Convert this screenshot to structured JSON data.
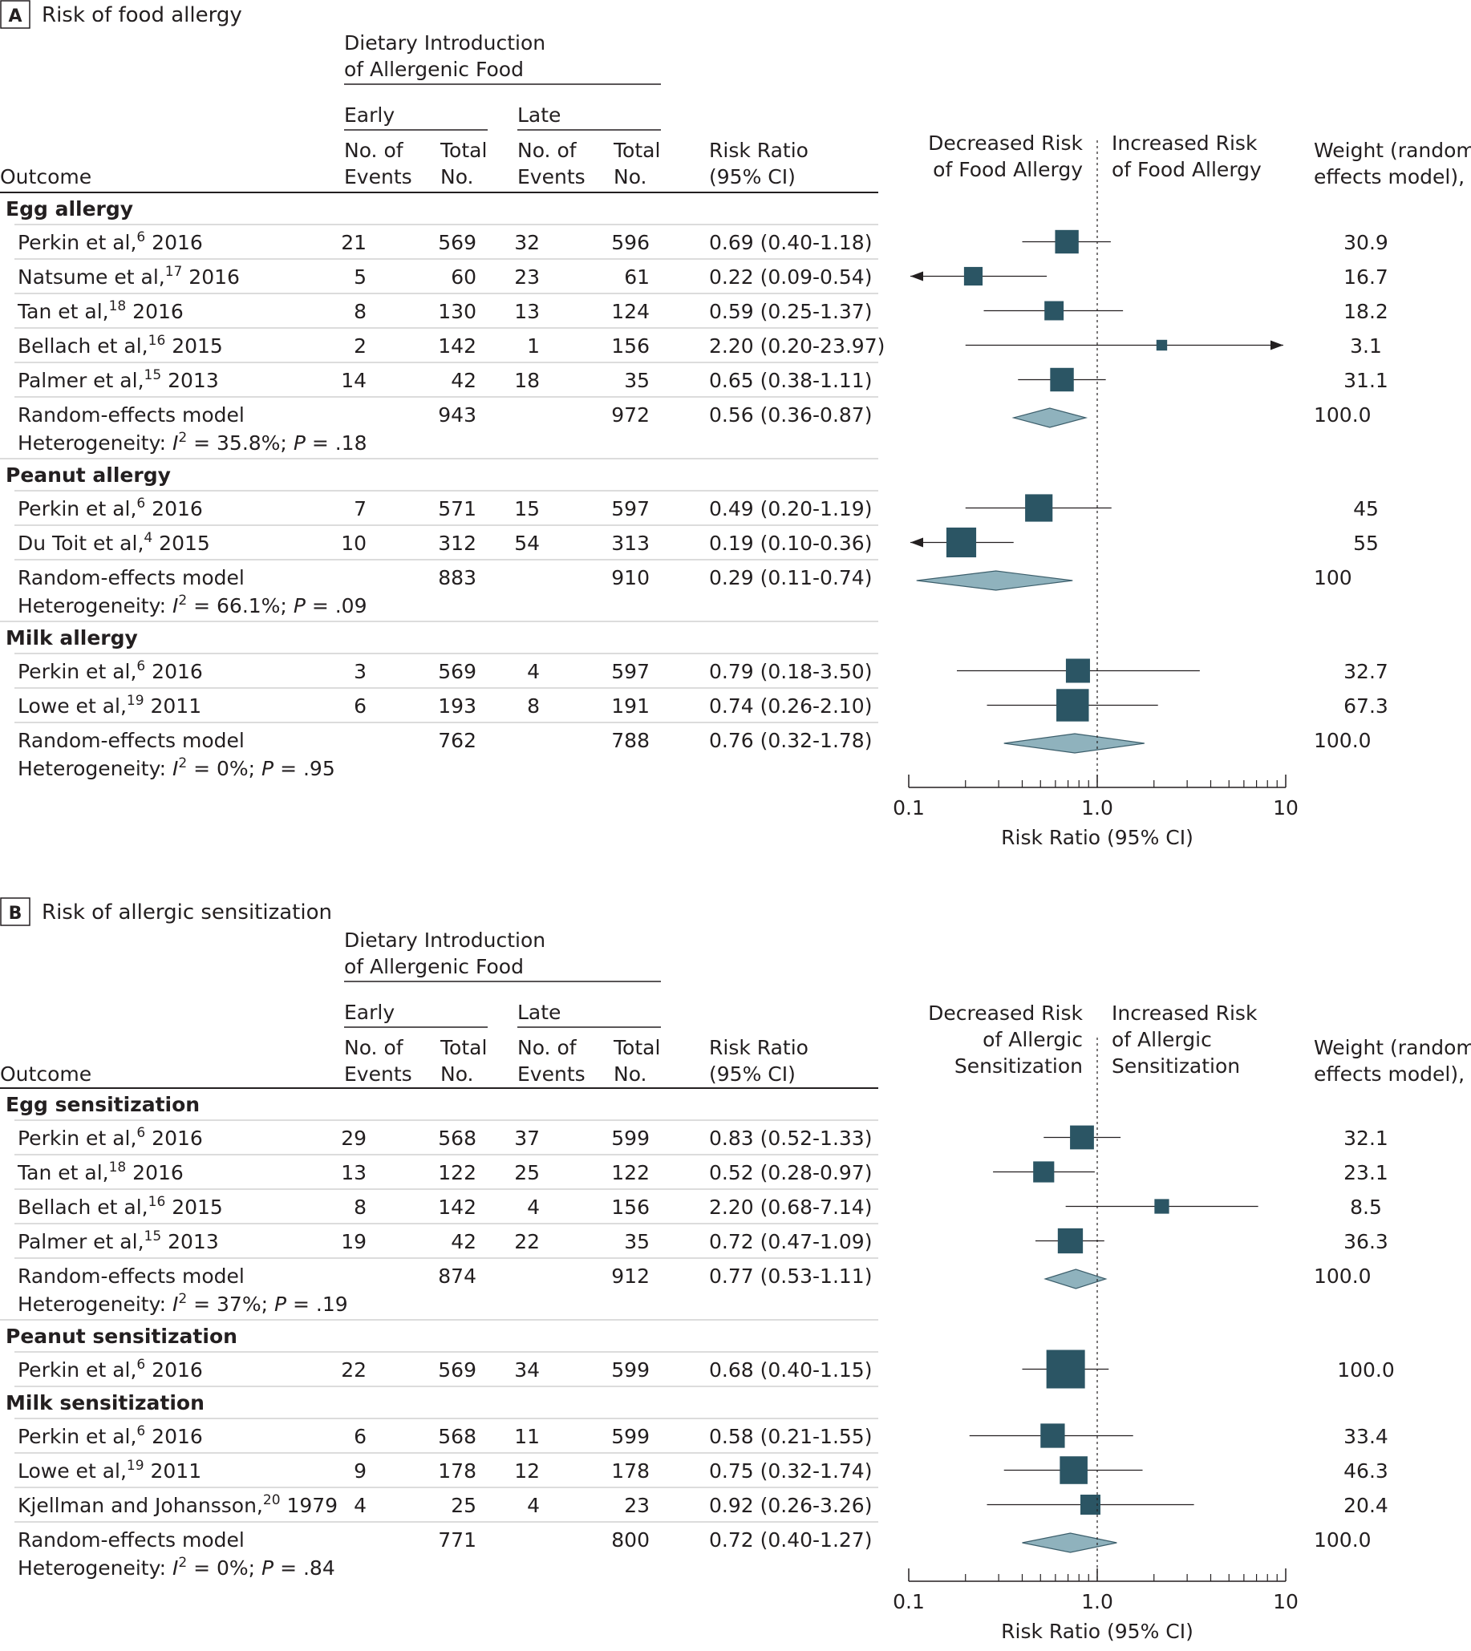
{
  "panels": [
    {
      "letter": "A",
      "title": "Risk of food allergy",
      "header": {
        "group_title": [
          "Dietary Introduction",
          "of Allergenic Food"
        ],
        "early": "Early",
        "late": "Late",
        "outcome": "Outcome",
        "events": [
          "No. of",
          "Events"
        ],
        "total": [
          "Total",
          "No."
        ],
        "rr": [
          "Risk Ratio",
          "(95% CI)"
        ],
        "left_label": [
          "Decreased Risk",
          "of Food Allergy"
        ],
        "right_label": [
          "Increased Risk",
          "of Food Allergy"
        ],
        "weight": [
          "Weight (random-",
          "effects model), %"
        ]
      },
      "groups": [
        {
          "name": "Egg allergy",
          "studies": [
            {
              "study": "Perkin et al,",
              "ref": "6",
              "year": "2016",
              "early_events": "21",
              "early_total": "569",
              "late_events": "32",
              "late_total": "596",
              "rr_text": "0.69 (0.40-1.18)",
              "weight": "30.9"
            },
            {
              "study": "Natsume et al,",
              "ref": "17",
              "year": "2016",
              "early_events": "5",
              "early_total": "60",
              "late_events": "23",
              "late_total": "61",
              "rr_text": "0.22 (0.09-0.54)",
              "weight": "16.7"
            },
            {
              "study": "Tan et al,",
              "ref": "18",
              "year": "2016",
              "early_events": "8",
              "early_total": "130",
              "late_events": "13",
              "late_total": "124",
              "rr_text": "0.59 (0.25-1.37)",
              "weight": "18.2"
            },
            {
              "study": "Bellach et al,",
              "ref": "16",
              "year": "2015",
              "early_events": "2",
              "early_total": "142",
              "late_events": "1",
              "late_total": "156",
              "rr_text": "2.20 (0.20-23.97)",
              "weight": "3.1"
            },
            {
              "study": "Palmer et al,",
              "ref": "15",
              "year": "2013",
              "early_events": "14",
              "early_total": "42",
              "late_events": "18",
              "late_total": "35",
              "rr_text": "0.65 (0.38-1.11)",
              "weight": "31.1"
            }
          ],
          "summary": {
            "label": "Random-effects model",
            "early_total": "943",
            "late_total": "972",
            "rr_text": "0.56 (0.36-0.87)",
            "weight": "100.0",
            "het_value": "35.8%",
            "p_value": ".18"
          }
        },
        {
          "name": "Peanut allergy",
          "studies": [
            {
              "study": "Perkin et al,",
              "ref": "6",
              "year": "2016",
              "early_events": "7",
              "early_total": "571",
              "late_events": "15",
              "late_total": "597",
              "rr_text": "0.49 (0.20-1.19)",
              "weight": "45"
            },
            {
              "study": "Du Toit et al,",
              "ref": "4",
              "year": "2015",
              "early_events": "10",
              "early_total": "312",
              "late_events": "54",
              "late_total": "313",
              "rr_text": "0.19 (0.10-0.36)",
              "weight": "55"
            }
          ],
          "summary": {
            "label": "Random-effects model",
            "early_total": "883",
            "late_total": "910",
            "rr_text": "0.29 (0.11-0.74)",
            "weight": "100",
            "het_value": "66.1%",
            "p_value": ".09"
          }
        },
        {
          "name": "Milk allergy",
          "studies": [
            {
              "study": "Perkin et al,",
              "ref": "6",
              "year": "2016",
              "early_events": "3",
              "early_total": "569",
              "late_events": "4",
              "late_total": "597",
              "rr_text": "0.79 (0.18-3.50)",
              "weight": "32.7"
            },
            {
              "study": "Lowe et al,",
              "ref": "19",
              "year": "2011",
              "early_events": "6",
              "early_total": "193",
              "late_events": "8",
              "late_total": "191",
              "rr_text": "0.74 (0.26-2.10)",
              "weight": "67.3"
            }
          ],
          "summary": {
            "label": "Random-effects model",
            "early_total": "762",
            "late_total": "788",
            "rr_text": "0.76 (0.32-1.78)",
            "weight": "100.0",
            "het_value": "0%",
            "p_value": ".95"
          }
        }
      ],
      "axis": {
        "ticks": [
          "0.1",
          "1.0",
          "10"
        ],
        "label": "Risk Ratio (95% CI)"
      }
    },
    {
      "letter": "B",
      "title": "Risk of allergic sensitization",
      "header": {
        "group_title": [
          "Dietary Introduction",
          "of Allergenic Food"
        ],
        "early": "Early",
        "late": "Late",
        "outcome": "Outcome",
        "events": [
          "No. of",
          "Events"
        ],
        "total": [
          "Total",
          "No."
        ],
        "rr": [
          "Risk Ratio",
          "(95% CI)"
        ],
        "left_label": [
          "Decreased Risk",
          "of Allergic",
          "Sensitization"
        ],
        "right_label": [
          "Increased Risk",
          "of Allergic",
          "Sensitization"
        ],
        "weight": [
          "Weight (random-",
          "effects model), %"
        ]
      },
      "groups": [
        {
          "name": "Egg sensitization",
          "studies": [
            {
              "study": "Perkin et al,",
              "ref": "6",
              "year": "2016",
              "early_events": "29",
              "early_total": "568",
              "late_events": "37",
              "late_total": "599",
              "rr_text": "0.83 (0.52-1.33)",
              "weight": "32.1"
            },
            {
              "study": "Tan et al,",
              "ref": "18",
              "year": "2016",
              "early_events": "13",
              "early_total": "122",
              "late_events": "25",
              "late_total": "122",
              "rr_text": "0.52 (0.28-0.97)",
              "weight": "23.1"
            },
            {
              "study": "Bellach et al,",
              "ref": "16",
              "year": "2015",
              "early_events": "8",
              "early_total": "142",
              "late_events": "4",
              "late_total": "156",
              "rr_text": "2.20 (0.68-7.14)",
              "weight": "8.5"
            },
            {
              "study": "Palmer et al,",
              "ref": "15",
              "year": "2013",
              "early_events": "19",
              "early_total": "42",
              "late_events": "22",
              "late_total": "35",
              "rr_text": "0.72 (0.47-1.09)",
              "weight": "36.3"
            }
          ],
          "summary": {
            "label": "Random-effects model",
            "early_total": "874",
            "late_total": "912",
            "rr_text": "0.77 (0.53-1.11)",
            "weight": "100.0",
            "het_value": "37%",
            "p_value": ".19"
          }
        },
        {
          "name": "Peanut sensitization",
          "studies": [
            {
              "study": "Perkin et al,",
              "ref": "6",
              "year": "2016",
              "early_events": "22",
              "early_total": "569",
              "late_events": "34",
              "late_total": "599",
              "rr_text": "0.68 (0.40-1.15)",
              "weight": "100.0"
            }
          ],
          "summary": null
        },
        {
          "name": "Milk sensitization",
          "studies": [
            {
              "study": "Perkin et al,",
              "ref": "6",
              "year": "2016",
              "early_events": "6",
              "early_total": "568",
              "late_events": "11",
              "late_total": "599",
              "rr_text": "0.58 (0.21-1.55)",
              "weight": "33.4"
            },
            {
              "study": "Lowe et al,",
              "ref": "19",
              "year": "2011",
              "early_events": "9",
              "early_total": "178",
              "late_events": "12",
              "late_total": "178",
              "rr_text": "0.75 (0.32-1.74)",
              "weight": "46.3"
            },
            {
              "study": "Kjellman and Johansson,",
              "ref": "20",
              "year": "1979",
              "early_events": "4",
              "early_total": "25",
              "late_events": "4",
              "late_total": "23",
              "rr_text": "0.92 (0.26-3.26)",
              "weight": "20.4"
            }
          ],
          "summary": {
            "label": "Random-effects model",
            "early_total": "771",
            "late_total": "800",
            "rr_text": "0.72 (0.40-1.27)",
            "weight": "100.0",
            "het_value": "0%",
            "p_value": ".84"
          }
        }
      ],
      "axis": {
        "ticks": [
          "0.1",
          "1.0",
          "10"
        ],
        "label": "Risk Ratio (95% CI)"
      }
    }
  ],
  "het_prefix": "Heterogeneity: ",
  "het_symbol": "I",
  "het_power": "2",
  "het_p_symbol": "P",
  "colors": {
    "square": "#2b5564",
    "diamond": "#8fb2bd",
    "diamond_stroke": "#3d5f6c",
    "ink": "#231f20"
  },
  "chart_data": [
    {
      "type": "forest",
      "title": "Risk of food allergy",
      "xlabel": "Risk Ratio (95% CI)",
      "x_scale": "log",
      "xlim": [
        0.1,
        10
      ],
      "reference_line": 1.0,
      "series": [
        {
          "name": "Egg allergy",
          "points": [
            {
              "label": "Perkin et al, 2016",
              "rr": 0.69,
              "lo": 0.4,
              "hi": 1.18,
              "weight": 30.9
            },
            {
              "label": "Natsume et al, 2016",
              "rr": 0.22,
              "lo": 0.09,
              "hi": 0.54,
              "weight": 16.7
            },
            {
              "label": "Tan et al, 2016",
              "rr": 0.59,
              "lo": 0.25,
              "hi": 1.37,
              "weight": 18.2
            },
            {
              "label": "Bellach et al, 2015",
              "rr": 2.2,
              "lo": 0.2,
              "hi": 23.97,
              "weight": 3.1
            },
            {
              "label": "Palmer et al, 2013",
              "rr": 0.65,
              "lo": 0.38,
              "hi": 1.11,
              "weight": 31.1
            }
          ],
          "pooled": {
            "rr": 0.56,
            "lo": 0.36,
            "hi": 0.87
          }
        },
        {
          "name": "Peanut allergy",
          "points": [
            {
              "label": "Perkin et al, 2016",
              "rr": 0.49,
              "lo": 0.2,
              "hi": 1.19,
              "weight": 45
            },
            {
              "label": "Du Toit et al, 2015",
              "rr": 0.19,
              "lo": 0.1,
              "hi": 0.36,
              "weight": 55
            }
          ],
          "pooled": {
            "rr": 0.29,
            "lo": 0.11,
            "hi": 0.74
          }
        },
        {
          "name": "Milk allergy",
          "points": [
            {
              "label": "Perkin et al, 2016",
              "rr": 0.79,
              "lo": 0.18,
              "hi": 3.5,
              "weight": 32.7
            },
            {
              "label": "Lowe et al, 2011",
              "rr": 0.74,
              "lo": 0.26,
              "hi": 2.1,
              "weight": 67.3
            }
          ],
          "pooled": {
            "rr": 0.76,
            "lo": 0.32,
            "hi": 1.78
          }
        }
      ]
    },
    {
      "type": "forest",
      "title": "Risk of allergic sensitization",
      "xlabel": "Risk Ratio (95% CI)",
      "x_scale": "log",
      "xlim": [
        0.1,
        10
      ],
      "reference_line": 1.0,
      "series": [
        {
          "name": "Egg sensitization",
          "points": [
            {
              "label": "Perkin et al, 2016",
              "rr": 0.83,
              "lo": 0.52,
              "hi": 1.33,
              "weight": 32.1
            },
            {
              "label": "Tan et al, 2016",
              "rr": 0.52,
              "lo": 0.28,
              "hi": 0.97,
              "weight": 23.1
            },
            {
              "label": "Bellach et al, 2015",
              "rr": 2.2,
              "lo": 0.68,
              "hi": 7.14,
              "weight": 8.5
            },
            {
              "label": "Palmer et al, 2013",
              "rr": 0.72,
              "lo": 0.47,
              "hi": 1.09,
              "weight": 36.3
            }
          ],
          "pooled": {
            "rr": 0.77,
            "lo": 0.53,
            "hi": 1.11
          }
        },
        {
          "name": "Peanut sensitization",
          "points": [
            {
              "label": "Perkin et al, 2016",
              "rr": 0.68,
              "lo": 0.4,
              "hi": 1.15,
              "weight": 100.0
            }
          ],
          "pooled": null
        },
        {
          "name": "Milk sensitization",
          "points": [
            {
              "label": "Perkin et al, 2016",
              "rr": 0.58,
              "lo": 0.21,
              "hi": 1.55,
              "weight": 33.4
            },
            {
              "label": "Lowe et al, 2011",
              "rr": 0.75,
              "lo": 0.32,
              "hi": 1.74,
              "weight": 46.3
            },
            {
              "label": "Kjellman and Johansson, 1979",
              "rr": 0.92,
              "lo": 0.26,
              "hi": 3.26,
              "weight": 20.4
            }
          ],
          "pooled": {
            "rr": 0.72,
            "lo": 0.4,
            "hi": 1.27
          }
        }
      ]
    }
  ]
}
